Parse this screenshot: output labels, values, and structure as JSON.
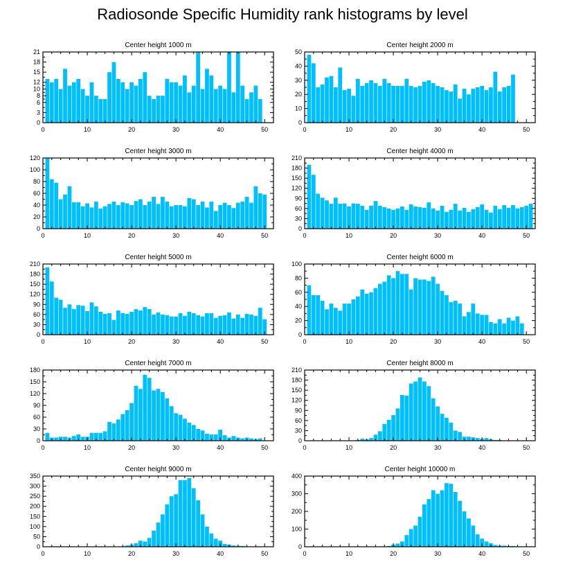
{
  "title": "Radiosonde Specific Humidity rank histograms by level",
  "colors": {
    "bar": "#00bfff",
    "axis": "#000000"
  },
  "chart_data": [
    {
      "type": "bar",
      "title": "Center height 1000 m",
      "xlim": [
        0,
        52
      ],
      "ylim": [
        0,
        21
      ],
      "xticks": [
        0,
        10,
        20,
        30,
        40,
        50
      ],
      "yticks": [
        0,
        3,
        6,
        8,
        10,
        12,
        15,
        18,
        21
      ],
      "yticklabels": [
        "0",
        "3",
        "6",
        "8",
        "10",
        "12",
        "15",
        "18",
        "21"
      ],
      "values": [
        13,
        12,
        13,
        10,
        16,
        11,
        12,
        13,
        10,
        8,
        12,
        8,
        7,
        7,
        15,
        18,
        13,
        12,
        10,
        12,
        11,
        13,
        15,
        8,
        7,
        8,
        8,
        13,
        12,
        12,
        11,
        14,
        9,
        11,
        21,
        10,
        16,
        14,
        10,
        11,
        10,
        21,
        9,
        21,
        11,
        7,
        9,
        11,
        7
      ]
    },
    {
      "type": "bar",
      "title": "Center height 2000 m",
      "xlim": [
        0,
        52
      ],
      "ylim": [
        0,
        50
      ],
      "xticks": [
        0,
        10,
        20,
        30,
        40,
        50
      ],
      "yticks": [
        0,
        10,
        20,
        30,
        40,
        50
      ],
      "values": [
        48,
        42,
        25,
        27,
        32,
        33,
        25,
        39,
        23,
        24,
        19,
        31,
        26,
        28,
        30,
        28,
        26,
        31,
        28,
        26,
        26,
        26,
        31,
        26,
        25,
        26,
        29,
        30,
        28,
        26,
        25,
        23,
        22,
        27,
        17,
        24,
        20,
        24,
        25,
        26,
        23,
        25,
        36,
        22,
        25,
        26,
        34
      ]
    },
    {
      "type": "bar",
      "title": "Center height 3000 m",
      "xlim": [
        0,
        52
      ],
      "ylim": [
        0,
        120
      ],
      "xticks": [
        0,
        10,
        20,
        30,
        40,
        50
      ],
      "yticks": [
        0,
        20,
        40,
        60,
        80,
        100,
        120
      ],
      "values": [
        120,
        84,
        78,
        50,
        58,
        72,
        45,
        45,
        38,
        43,
        36,
        46,
        34,
        38,
        42,
        46,
        40,
        45,
        43,
        40,
        47,
        50,
        40,
        46,
        54,
        42,
        54,
        46,
        38,
        40,
        40,
        38,
        52,
        50,
        40,
        46,
        36,
        46,
        30,
        40,
        44,
        40,
        35,
        44,
        46,
        54,
        44,
        72,
        60,
        58
      ]
    },
    {
      "type": "bar",
      "title": "Center height 4000 m",
      "xlim": [
        0,
        52
      ],
      "ylim": [
        0,
        210
      ],
      "xticks": [
        0,
        10,
        20,
        30,
        40,
        50
      ],
      "yticks": [
        0,
        30,
        60,
        90,
        120,
        150,
        180,
        210
      ],
      "values": [
        190,
        160,
        104,
        92,
        84,
        74,
        92,
        74,
        75,
        66,
        75,
        74,
        68,
        56,
        68,
        82,
        68,
        64,
        60,
        56,
        60,
        66,
        56,
        72,
        66,
        64,
        62,
        78,
        60,
        54,
        68,
        50,
        56,
        74,
        54,
        62,
        50,
        58,
        64,
        72,
        56,
        48,
        68,
        58,
        70,
        62,
        70,
        60,
        64,
        68,
        74
      ]
    },
    {
      "type": "bar",
      "title": "Center height 5000 m",
      "xlim": [
        0,
        52
      ],
      "ylim": [
        0,
        210
      ],
      "xticks": [
        0,
        10,
        20,
        30,
        40,
        50
      ],
      "yticks": [
        0,
        30,
        60,
        90,
        120,
        150,
        180,
        210
      ],
      "values": [
        200,
        158,
        110,
        104,
        80,
        90,
        76,
        88,
        86,
        70,
        96,
        84,
        68,
        62,
        64,
        44,
        72,
        64,
        62,
        68,
        76,
        72,
        82,
        76,
        60,
        66,
        60,
        58,
        54,
        54,
        64,
        56,
        68,
        64,
        58,
        54,
        64,
        64,
        50,
        56,
        58,
        66,
        48,
        60,
        50,
        62,
        60,
        56,
        80,
        46
      ]
    },
    {
      "type": "bar",
      "title": "Center height 6000 m",
      "xlim": [
        0,
        52
      ],
      "ylim": [
        0,
        100
      ],
      "xticks": [
        0,
        10,
        20,
        30,
        40,
        50
      ],
      "yticks": [
        0,
        20,
        40,
        60,
        80,
        100
      ],
      "values": [
        70,
        56,
        56,
        48,
        36,
        44,
        38,
        34,
        44,
        44,
        50,
        54,
        64,
        58,
        60,
        66,
        72,
        75,
        84,
        80,
        90,
        86,
        86,
        64,
        80,
        78,
        78,
        76,
        82,
        72,
        62,
        56,
        46,
        48,
        44,
        26,
        32,
        44,
        30,
        28,
        28,
        18,
        16,
        22,
        16,
        24,
        20,
        26,
        16
      ]
    },
    {
      "type": "bar",
      "title": "Center height 7000 m",
      "xlim": [
        0,
        52
      ],
      "ylim": [
        0,
        180
      ],
      "xticks": [
        0,
        10,
        20,
        30,
        40,
        50
      ],
      "yticks": [
        0,
        30,
        60,
        90,
        120,
        150,
        180
      ],
      "values": [
        20,
        8,
        8,
        10,
        10,
        8,
        12,
        16,
        10,
        10,
        20,
        20,
        20,
        24,
        48,
        44,
        54,
        68,
        78,
        96,
        140,
        132,
        168,
        160,
        128,
        132,
        124,
        108,
        88,
        70,
        66,
        56,
        46,
        40,
        30,
        26,
        18,
        16,
        16,
        28,
        14,
        8,
        12,
        8,
        6,
        8,
        6,
        4,
        6
      ]
    },
    {
      "type": "bar",
      "title": "Center height 8000 m",
      "xlim": [
        0,
        52
      ],
      "ylim": [
        0,
        210
      ],
      "xticks": [
        0,
        10,
        20,
        30,
        40,
        50
      ],
      "yticks": [
        0,
        30,
        60,
        90,
        120,
        150,
        180,
        210
      ],
      "values": [
        0,
        0,
        0,
        0,
        0,
        0,
        0,
        0,
        0,
        0,
        0,
        2,
        6,
        4,
        8,
        18,
        28,
        50,
        62,
        76,
        96,
        136,
        134,
        170,
        176,
        188,
        176,
        162,
        126,
        102,
        80,
        68,
        54,
        30,
        26,
        12,
        12,
        10,
        8,
        6,
        8,
        4,
        2,
        2,
        0,
        0,
        0,
        0,
        0,
        0
      ]
    },
    {
      "type": "bar",
      "title": "Center height 9000 m",
      "xlim": [
        0,
        52
      ],
      "ylim": [
        0,
        350
      ],
      "xticks": [
        0,
        10,
        20,
        30,
        40,
        50
      ],
      "yticks": [
        0,
        50,
        100,
        150,
        200,
        250,
        300,
        350
      ],
      "values": [
        0,
        0,
        0,
        0,
        0,
        0,
        0,
        0,
        0,
        0,
        0,
        0,
        0,
        0,
        0,
        0,
        0,
        2,
        6,
        10,
        18,
        30,
        26,
        44,
        80,
        120,
        160,
        210,
        250,
        260,
        330,
        330,
        340,
        290,
        230,
        160,
        100,
        66,
        40,
        30,
        14,
        10,
        6,
        4,
        4,
        2,
        2,
        0,
        2,
        0,
        0
      ]
    },
    {
      "type": "bar",
      "title": "Center height 10000 m",
      "xlim": [
        0,
        52
      ],
      "ylim": [
        0,
        400
      ],
      "xticks": [
        0,
        10,
        20,
        30,
        40,
        50
      ],
      "yticks": [
        0,
        100,
        200,
        300,
        400
      ],
      "values": [
        0,
        0,
        0,
        0,
        0,
        0,
        0,
        0,
        0,
        0,
        0,
        0,
        0,
        0,
        0,
        0,
        0,
        0,
        4,
        12,
        18,
        30,
        66,
        100,
        120,
        170,
        240,
        270,
        320,
        300,
        320,
        360,
        356,
        310,
        260,
        200,
        160,
        120,
        70,
        46,
        30,
        20,
        10,
        6,
        6,
        4,
        4,
        2,
        2,
        0,
        0
      ]
    }
  ]
}
